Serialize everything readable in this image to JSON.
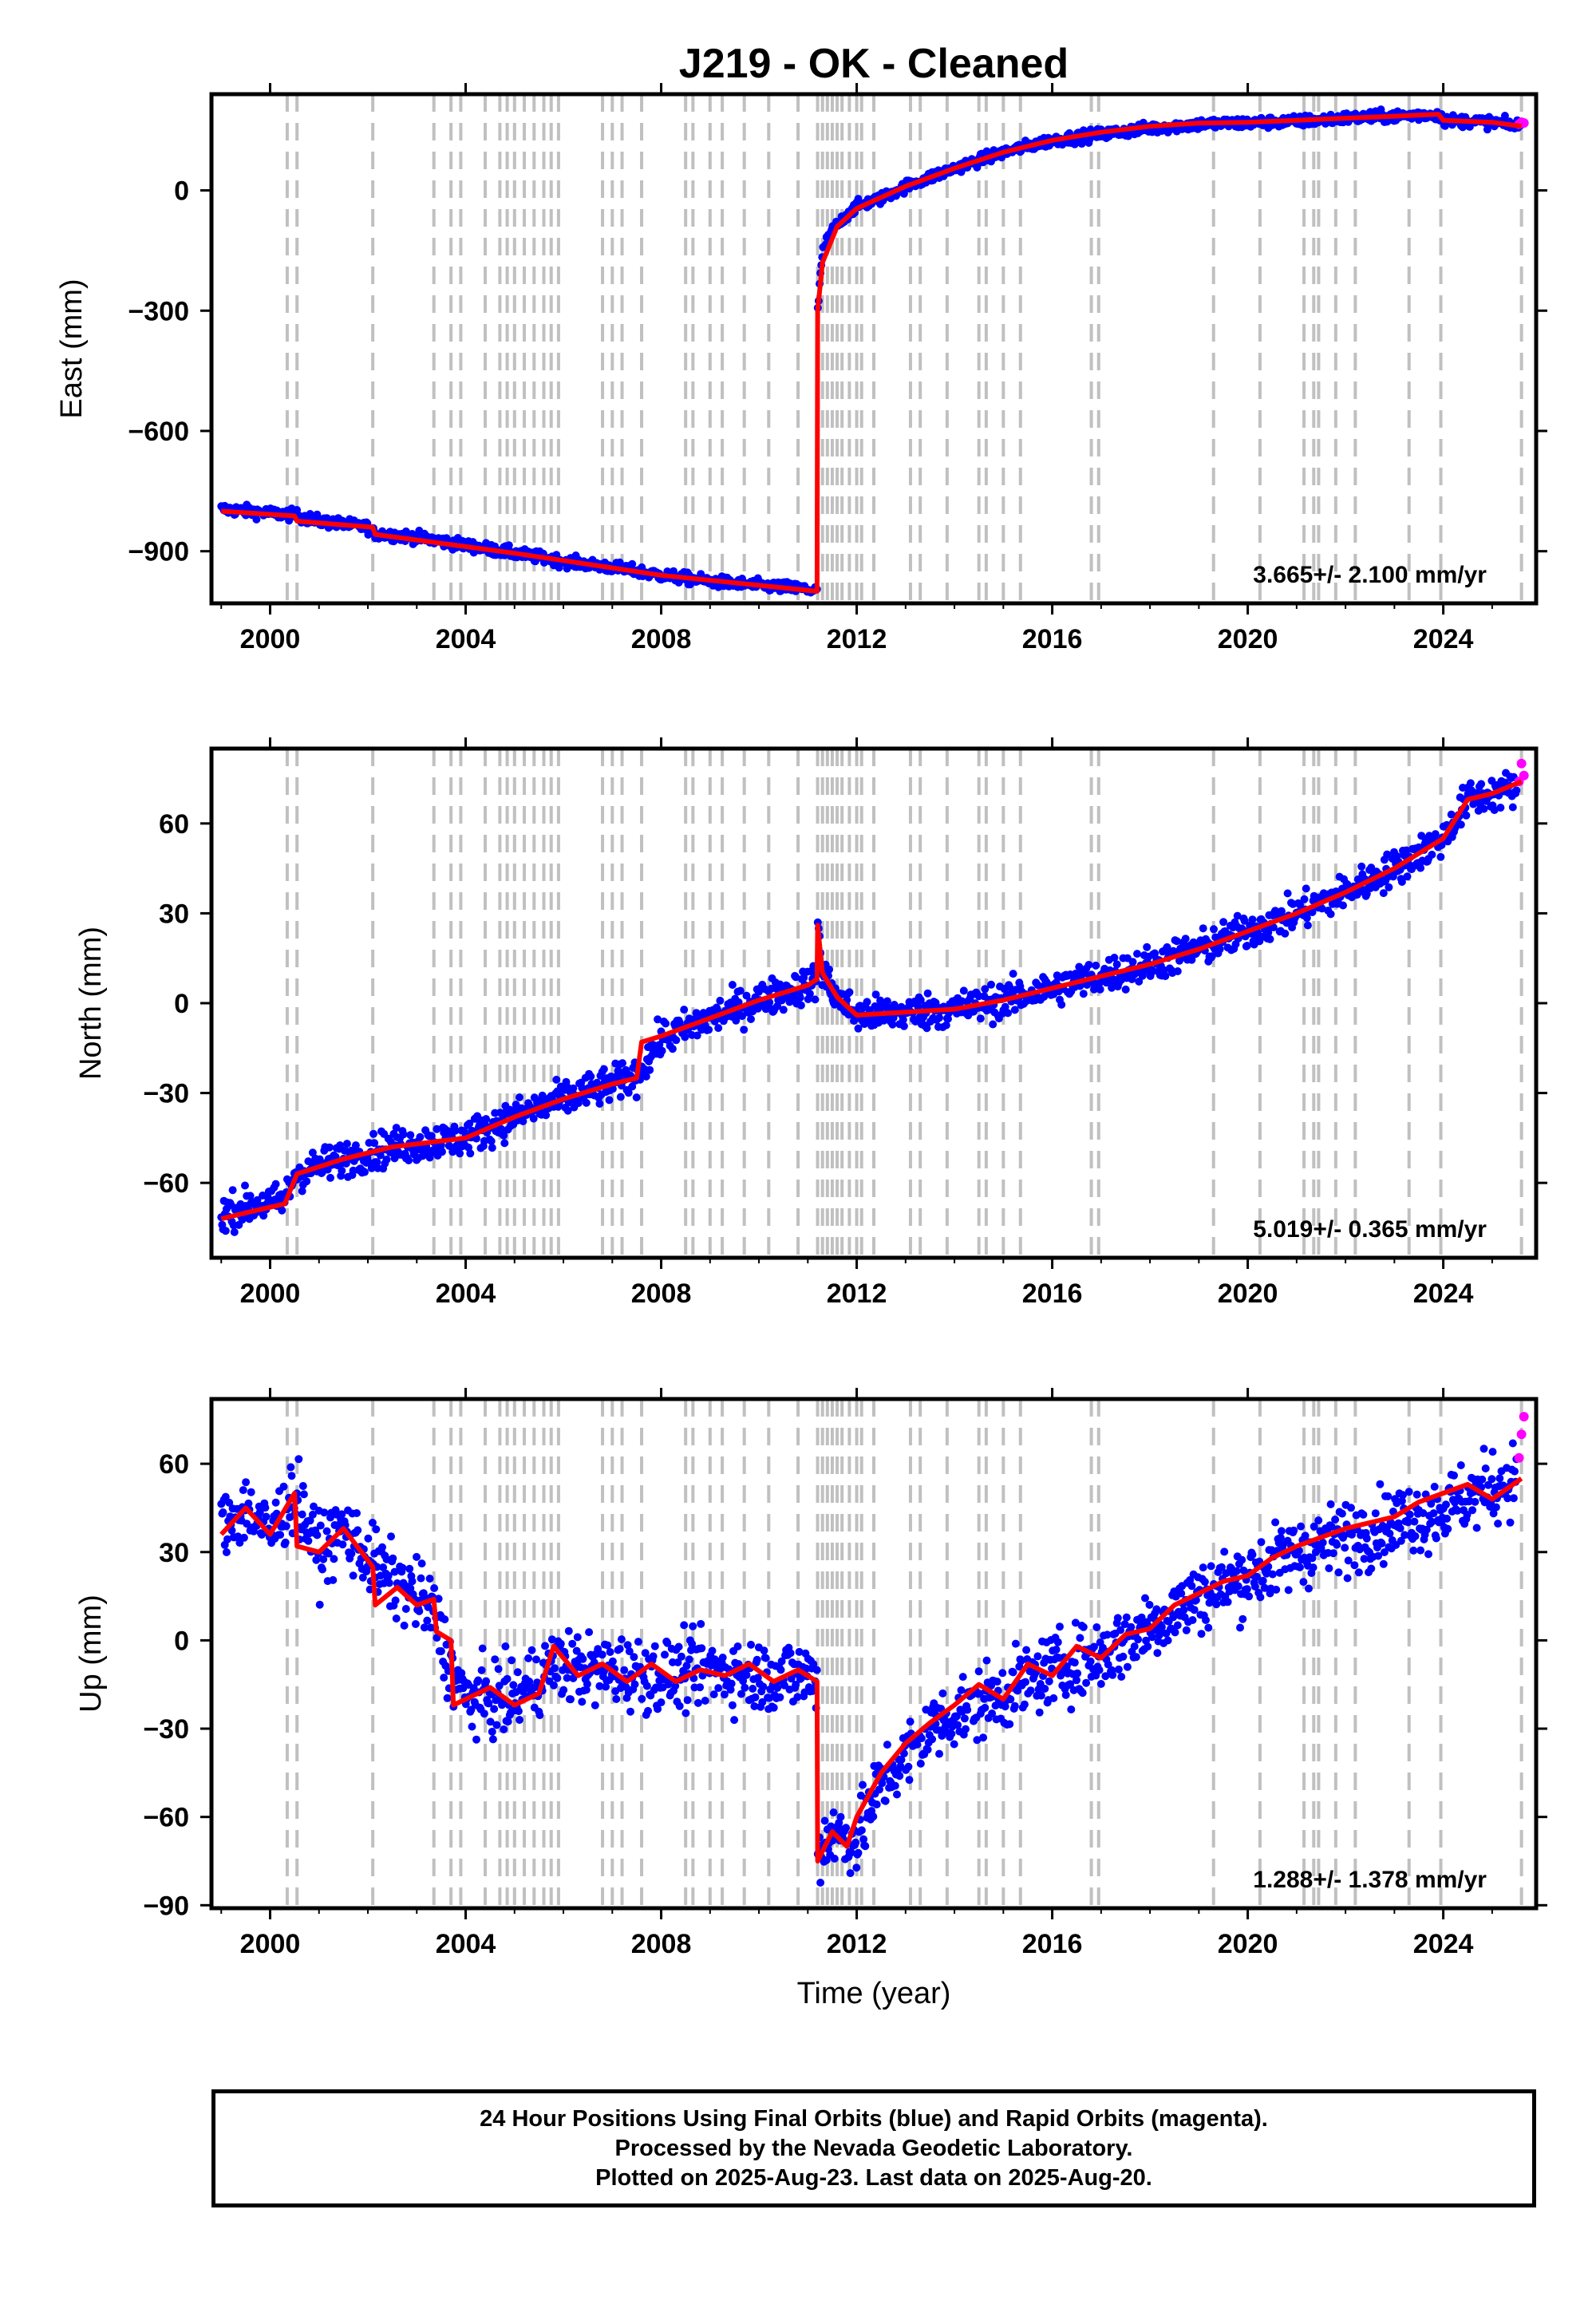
{
  "figure": {
    "title": "J219  - OK - Cleaned",
    "xlabel": "Time (year)"
  },
  "footer": {
    "line1": "24 Hour Positions Using Final Orbits (blue) and Rapid Orbits (magenta).",
    "line2": "Processed by the Nevada Geodetic Laboratory.",
    "line3": "Plotted on 2025-Aug-23. Last data on 2025-Aug-20."
  },
  "colors": {
    "final_orbits": "#0000ff",
    "rapid_orbits": "#ff00ff",
    "model": "#ff0000",
    "event_lines": "#c0c0c0",
    "frame": "#000000"
  },
  "chart_data": [
    {
      "type": "scatter",
      "ylabel": "East (mm)",
      "rate_text": "3.665+/- 2.100 mm/yr",
      "xlim": [
        1998.8,
        2025.9
      ],
      "ylim": [
        -1030,
        240
      ],
      "xticks": [
        2000,
        2004,
        2008,
        2012,
        2016,
        2020,
        2024
      ],
      "yticks": [
        0,
        -300,
        -600,
        -900
      ],
      "events": [
        2000.35,
        2000.55,
        2002.1,
        2003.35,
        2003.7,
        2003.9,
        2004.4,
        2004.7,
        2004.85,
        2005.0,
        2005.2,
        2005.4,
        2005.6,
        2005.75,
        2005.9,
        2006.8,
        2007.0,
        2007.2,
        2007.6,
        2008.5,
        2008.65,
        2009.0,
        2009.25,
        2009.7,
        2010.2,
        2010.8,
        2011.2,
        2011.3,
        2011.4,
        2011.5,
        2011.6,
        2011.7,
        2011.85,
        2012.0,
        2012.1,
        2012.35,
        2013.1,
        2013.3,
        2013.85,
        2014.5,
        2014.65,
        2015.0,
        2015.35,
        2016.8,
        2016.95,
        2019.3,
        2020.25,
        2021.15,
        2021.35,
        2021.45,
        2021.8,
        2022.2,
        2023.3,
        2023.95,
        2025.6
      ],
      "series": [
        {
          "name": "Final Orbits",
          "x": [
            1999.0,
            2000.0,
            2000.5,
            2001.0,
            2002.0,
            2002.1,
            2003.0,
            2004.0,
            2005.0,
            2006.0,
            2007.0,
            2008.0,
            2009.0,
            2010.0,
            2011.0,
            2011.19,
            2011.2,
            2011.25,
            2011.3,
            2011.5,
            2011.8,
            2012.0,
            2012.5,
            2013.0,
            2014.0,
            2015.0,
            2016.0,
            2017.0,
            2018.0,
            2019.0,
            2020.0,
            2021.0,
            2022.0,
            2023.0,
            2023.9,
            2024.0,
            2025.0,
            2025.6
          ],
          "values": [
            -795,
            -805,
            -810,
            -825,
            -840,
            -855,
            -865,
            -885,
            -905,
            -925,
            -940,
            -960,
            -975,
            -985,
            -995,
            -1000,
            -300,
            -230,
            -150,
            -100,
            -60,
            -40,
            -20,
            10,
            55,
            95,
            125,
            140,
            155,
            165,
            168,
            172,
            180,
            185,
            190,
            175,
            170,
            160
          ]
        },
        {
          "name": "Rapid Orbits",
          "x": [
            2025.55,
            2025.6,
            2025.65
          ],
          "values": [
            165,
            170,
            168
          ]
        }
      ],
      "model": {
        "x": [
          1999.0,
          2000.5,
          2000.55,
          2002.1,
          2002.15,
          2005.0,
          2008.0,
          2011.19,
          2011.2,
          2011.3,
          2011.6,
          2012.0,
          2013.0,
          2014.0,
          2015.0,
          2016.0,
          2017.0,
          2018.0,
          2019.0,
          2020.0,
          2021.0,
          2022.0,
          2023.0,
          2023.9,
          2024.0,
          2025.0,
          2025.6
        ],
        "values": [
          -800,
          -812,
          -825,
          -840,
          -858,
          -905,
          -960,
          -1000,
          -300,
          -180,
          -90,
          -45,
          10,
          55,
          95,
          125,
          145,
          160,
          168,
          170,
          175,
          180,
          185,
          190,
          175,
          170,
          160
        ]
      }
    },
    {
      "type": "scatter",
      "ylabel": "North (mm)",
      "rate_text": "5.019+/- 0.365 mm/yr",
      "xlim": [
        1998.8,
        2025.9
      ],
      "ylim": [
        -85,
        85
      ],
      "xticks": [
        2000,
        2004,
        2008,
        2012,
        2016,
        2020,
        2024
      ],
      "yticks": [
        60,
        30,
        0,
        -30,
        -60
      ],
      "events": [
        2000.35,
        2000.55,
        2002.1,
        2003.35,
        2003.7,
        2003.9,
        2004.4,
        2004.7,
        2004.85,
        2005.0,
        2005.2,
        2005.4,
        2005.6,
        2005.75,
        2005.9,
        2006.8,
        2007.0,
        2007.2,
        2007.6,
        2008.5,
        2008.65,
        2009.0,
        2009.25,
        2009.7,
        2010.2,
        2010.8,
        2011.2,
        2011.3,
        2011.4,
        2011.5,
        2011.6,
        2011.7,
        2011.85,
        2012.0,
        2012.1,
        2012.35,
        2013.1,
        2013.3,
        2013.85,
        2014.5,
        2014.65,
        2015.0,
        2015.35,
        2016.8,
        2016.95,
        2019.3,
        2020.25,
        2021.15,
        2021.35,
        2021.45,
        2021.8,
        2022.2,
        2023.3,
        2023.95,
        2025.6
      ],
      "series": [
        {
          "name": "Final Orbits",
          "x": [
            1999.0,
            1999.5,
            2000.3,
            2000.5,
            2001.5,
            2002.5,
            2003.5,
            2004.0,
            2005.0,
            2006.0,
            2007.0,
            2007.5,
            2008.0,
            2009.0,
            2010.0,
            2011.0,
            2011.19,
            2011.2,
            2011.3,
            2011.6,
            2012.0,
            2013.0,
            2014.0,
            2015.0,
            2016.0,
            2017.0,
            2018.0,
            2019.0,
            2020.0,
            2021.0,
            2022.0,
            2023.0,
            2024.0,
            2024.5,
            2025.0,
            2025.5
          ],
          "values": [
            -70,
            -68,
            -66,
            -57,
            -52,
            -48,
            -46,
            -45,
            -38,
            -32,
            -27,
            -24,
            -12,
            -5,
            1,
            6,
            8,
            28,
            10,
            2,
            -4,
            -3,
            -2,
            1,
            5,
            9,
            13,
            18,
            24,
            30,
            37,
            45,
            55,
            68,
            70,
            72
          ]
        },
        {
          "name": "Rapid Orbits",
          "x": [
            2025.55,
            2025.6,
            2025.65
          ],
          "values": [
            74,
            80,
            76
          ]
        }
      ],
      "model": {
        "x": [
          1999.0,
          1999.5,
          2000.3,
          2000.55,
          2001.5,
          2002.5,
          2003.5,
          2004.0,
          2005.0,
          2006.0,
          2007.0,
          2007.5,
          2007.6,
          2008.0,
          2009.0,
          2010.0,
          2011.0,
          2011.19,
          2011.2,
          2011.3,
          2011.6,
          2012.0,
          2013.0,
          2014.0,
          2015.0,
          2016.0,
          2017.0,
          2018.0,
          2019.0,
          2020.0,
          2021.0,
          2022.0,
          2023.0,
          2024.0,
          2024.5,
          2025.0,
          2025.6
        ],
        "values": [
          -72,
          -70,
          -67,
          -57,
          -52,
          -48,
          -46,
          -45,
          -38,
          -32,
          -27,
          -25,
          -13,
          -11,
          -5,
          1,
          6,
          8,
          26,
          10,
          2,
          -4,
          -3,
          -2,
          1,
          5,
          9,
          13,
          18,
          24,
          30,
          37,
          45,
          55,
          68,
          70,
          74
        ]
      }
    },
    {
      "type": "scatter",
      "ylabel": "Up (mm)",
      "rate_text": "1.288+/- 1.378 mm/yr",
      "xlim": [
        1998.8,
        2025.9
      ],
      "ylim": [
        -91,
        82
      ],
      "xticks": [
        2000,
        2004,
        2008,
        2012,
        2016,
        2020,
        2024
      ],
      "yticks": [
        60,
        30,
        0,
        -30,
        -60,
        -90
      ],
      "events": [
        2000.35,
        2000.55,
        2002.1,
        2003.35,
        2003.7,
        2003.9,
        2004.4,
        2004.7,
        2004.85,
        2005.0,
        2005.2,
        2005.4,
        2005.6,
        2005.75,
        2005.9,
        2006.8,
        2007.0,
        2007.2,
        2007.6,
        2008.5,
        2008.65,
        2009.0,
        2009.25,
        2009.7,
        2010.2,
        2010.8,
        2011.2,
        2011.3,
        2011.4,
        2011.5,
        2011.6,
        2011.7,
        2011.85,
        2012.0,
        2012.1,
        2012.35,
        2013.1,
        2013.3,
        2013.85,
        2014.5,
        2014.65,
        2015.0,
        2015.35,
        2016.8,
        2016.95,
        2019.3,
        2020.25,
        2021.15,
        2021.35,
        2021.45,
        2021.8,
        2022.2,
        2023.3,
        2023.95,
        2025.6
      ],
      "series": [
        {
          "name": "Final Orbits",
          "x": [
            1999.0,
            1999.5,
            2000.0,
            2000.5,
            2001.0,
            2001.5,
            2002.0,
            2002.5,
            2003.0,
            2003.4,
            2003.6,
            2004.0,
            2005.0,
            2005.8,
            2006.5,
            2007.0,
            2008.0,
            2009.0,
            2010.0,
            2011.0,
            2011.19,
            2011.2,
            2011.5,
            2012.0,
            2012.5,
            2013.0,
            2013.5,
            2014.0,
            2015.0,
            2016.0,
            2017.0,
            2018.0,
            2019.0,
            2020.0,
            2021.0,
            2022.0,
            2023.0,
            2024.0,
            2025.0,
            2025.5
          ],
          "values": [
            38,
            45,
            36,
            50,
            30,
            38,
            28,
            20,
            15,
            8,
            -5,
            -20,
            -20,
            -8,
            -10,
            -10,
            -12,
            -10,
            -12,
            -12,
            -14,
            -72,
            -65,
            -68,
            -48,
            -40,
            -30,
            -25,
            -18,
            -10,
            -5,
            5,
            15,
            22,
            30,
            35,
            40,
            45,
            52,
            55
          ]
        },
        {
          "name": "Rapid Orbits",
          "x": [
            2025.55,
            2025.6,
            2025.65
          ],
          "values": [
            62,
            70,
            76
          ]
        }
      ],
      "model": {
        "x": [
          1999.0,
          1999.5,
          2000.0,
          2000.5,
          2000.55,
          2001.0,
          2001.5,
          2002.1,
          2002.15,
          2002.6,
          2003.0,
          2003.35,
          2003.4,
          2003.7,
          2003.75,
          2004.0,
          2004.5,
          2005.0,
          2005.5,
          2005.8,
          2006.3,
          2006.8,
          2007.3,
          2007.8,
          2008.3,
          2008.8,
          2009.3,
          2009.8,
          2010.3,
          2010.8,
          2011.19,
          2011.2,
          2011.5,
          2011.8,
          2012.0,
          2012.5,
          2013.0,
          2013.5,
          2014.0,
          2014.5,
          2015.0,
          2015.5,
          2016.0,
          2016.5,
          2017.0,
          2017.5,
          2018.0,
          2018.5,
          2019.0,
          2019.5,
          2020.0,
          2020.5,
          2021.0,
          2021.5,
          2022.0,
          2022.5,
          2023.0,
          2023.5,
          2024.0,
          2024.5,
          2025.0,
          2025.6
        ],
        "values": [
          36,
          45,
          36,
          50,
          32,
          30,
          38,
          25,
          12,
          18,
          12,
          14,
          3,
          0,
          -22,
          -20,
          -16,
          -22,
          -18,
          -2,
          -12,
          -8,
          -14,
          -8,
          -14,
          -10,
          -12,
          -8,
          -14,
          -10,
          -14,
          -75,
          -65,
          -70,
          -60,
          -45,
          -35,
          -28,
          -22,
          -15,
          -20,
          -8,
          -12,
          -2,
          -6,
          2,
          4,
          12,
          16,
          20,
          22,
          28,
          32,
          35,
          38,
          40,
          42,
          47,
          50,
          53,
          48,
          55
        ]
      }
    }
  ]
}
